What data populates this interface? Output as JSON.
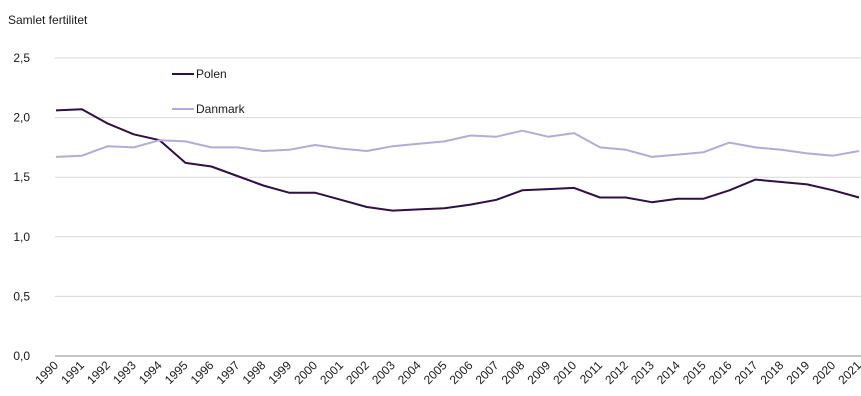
{
  "chart_data": {
    "type": "line",
    "title": "",
    "xlabel": "",
    "ylabel": "Samlet fertilitet",
    "ylim": [
      0,
      2.5
    ],
    "yticks": [
      "0,0",
      "0,5",
      "1,0",
      "1,5",
      "2,0",
      "2,5"
    ],
    "ytick_values": [
      0,
      0.5,
      1.0,
      1.5,
      2.0,
      2.5
    ],
    "grid": "horizontal",
    "legend": "top-left",
    "x": [
      "1990",
      "1991",
      "1992",
      "1993",
      "1994",
      "1995",
      "1996",
      "1997",
      "1998",
      "1999",
      "2000",
      "2001",
      "2002",
      "2003",
      "2004",
      "2005",
      "2006",
      "2007",
      "2008",
      "2009",
      "2010",
      "2011",
      "2012",
      "2013",
      "2014",
      "2015",
      "2016",
      "2017",
      "2018",
      "2019",
      "2020",
      "2021"
    ],
    "series": [
      {
        "name": "Polen",
        "color": "#2e0f46",
        "values": [
          2.06,
          2.07,
          1.95,
          1.86,
          1.81,
          1.62,
          1.59,
          1.51,
          1.43,
          1.37,
          1.37,
          1.31,
          1.25,
          1.22,
          1.23,
          1.24,
          1.27,
          1.31,
          1.39,
          1.4,
          1.41,
          1.33,
          1.33,
          1.29,
          1.32,
          1.32,
          1.39,
          1.48,
          1.46,
          1.44,
          1.39,
          1.33
        ]
      },
      {
        "name": "Danmark",
        "color": "#b3acd8",
        "values": [
          1.67,
          1.68,
          1.76,
          1.75,
          1.81,
          1.8,
          1.75,
          1.75,
          1.72,
          1.73,
          1.77,
          1.74,
          1.72,
          1.76,
          1.78,
          1.8,
          1.85,
          1.84,
          1.89,
          1.84,
          1.87,
          1.75,
          1.73,
          1.67,
          1.69,
          1.71,
          1.79,
          1.75,
          1.73,
          1.7,
          1.68,
          1.72
        ]
      }
    ]
  }
}
